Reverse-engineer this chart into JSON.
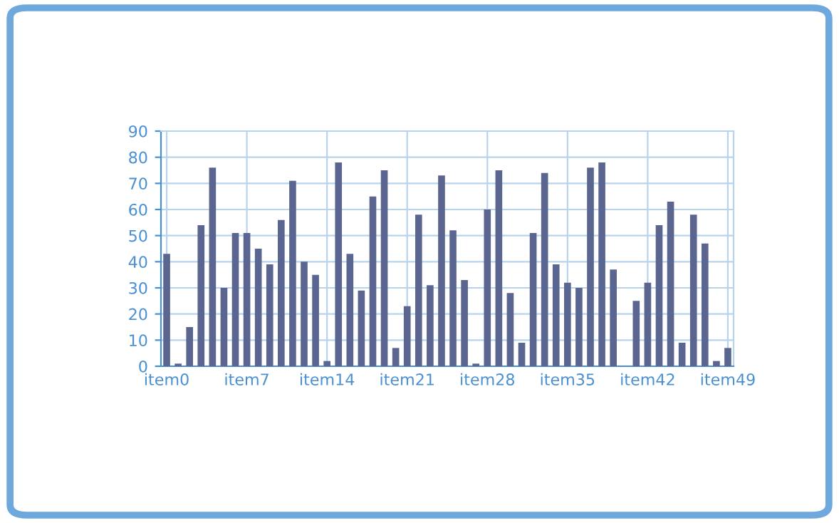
{
  "chart_data": {
    "type": "bar",
    "categories": [
      "item0",
      null,
      null,
      null,
      null,
      null,
      null,
      "item7",
      null,
      null,
      null,
      null,
      null,
      null,
      "item14",
      null,
      null,
      null,
      null,
      null,
      null,
      "item21",
      null,
      null,
      null,
      null,
      null,
      null,
      "item28",
      null,
      null,
      null,
      null,
      null,
      null,
      "item35",
      null,
      null,
      null,
      null,
      null,
      null,
      "item42",
      null,
      null,
      null,
      null,
      null,
      null,
      "item49"
    ],
    "values": [
      43,
      1,
      15,
      54,
      76,
      30,
      51,
      51,
      45,
      39,
      56,
      71,
      40,
      35,
      2,
      78,
      43,
      29,
      65,
      75,
      7,
      23,
      58,
      31,
      73,
      52,
      33,
      1,
      60,
      75,
      28,
      9,
      51,
      74,
      39,
      32,
      30,
      76,
      78,
      37,
      0,
      25,
      32,
      54,
      63,
      9,
      58,
      47,
      2,
      7
    ],
    "color": "#5a6690",
    "ylim": [
      0,
      90
    ],
    "yticks": [
      0,
      10,
      20,
      30,
      40,
      50,
      60,
      70,
      80,
      90
    ],
    "grid": true
  }
}
